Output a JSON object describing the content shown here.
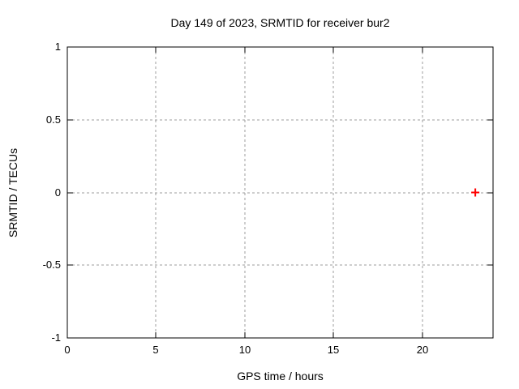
{
  "window": {
    "background": "#ffffff"
  },
  "chart_data": {
    "type": "scatter",
    "title": "Day 149 of 2023, SRMTID for receiver bur2",
    "xlabel": "GPS time / hours",
    "ylabel": "SRMTID / TECUs",
    "xlim": [
      0,
      24
    ],
    "ylim": [
      -1,
      1
    ],
    "xticks": [
      0,
      5,
      10,
      15,
      20
    ],
    "xtick_labels": [
      "0",
      "5",
      "10",
      "15",
      "20"
    ],
    "yticks": [
      1,
      0.5,
      0,
      -0.5,
      -1
    ],
    "ytick_labels": [
      "1",
      "0.5",
      "0",
      "-0.5",
      "-1"
    ],
    "grid": true,
    "grid_style": "dashed",
    "legend": false,
    "series": [
      {
        "name": "SRMTID",
        "marker": "plus",
        "color": "#ff0000",
        "points": [
          [
            23,
            0
          ]
        ]
      }
    ],
    "colors": {
      "axis": "#000000",
      "grid": "#9e9e9e",
      "background": "#ffffff",
      "point": "#ff0000"
    }
  }
}
